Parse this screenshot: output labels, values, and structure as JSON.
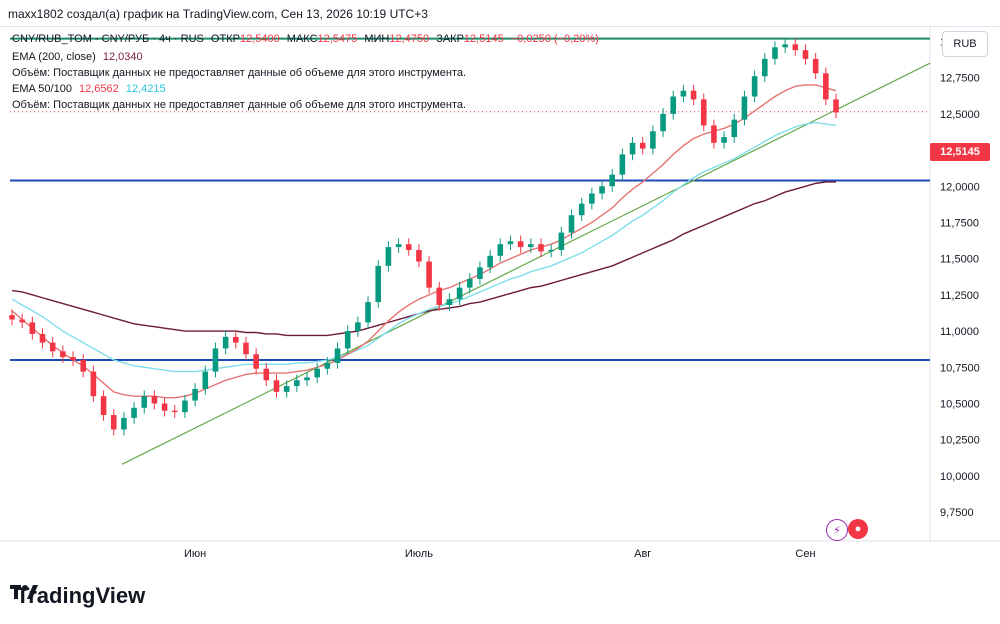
{
  "caption": "maxx1802 создал(а) график на TradingView.com, Сен 13, 2026 10:19 UTC+3",
  "header": {
    "symbol_line": "CNY/RUB_TOM - CNY/РУБ · 4ч · RUS",
    "open_label": "ОТКР",
    "open_value": "12,5400",
    "high_label": "МАКС",
    "high_value": "12,5475",
    "low_label": "МИН",
    "low_value": "12,4750",
    "close_label": "ЗАКР",
    "close_value": "12,5145",
    "change": "−0,0250 (−0,20%)",
    "currency_button": "RUB"
  },
  "indicators": {
    "ema200_label": "EMA (200, close)",
    "ema200_value": "12,0340",
    "volume_notice_1": "Объём: Поставщик данных не предоставляет данные об объеме для этого инструмента.",
    "ema50_100_label": "EMA 50/100",
    "ema50_value": "12,6562",
    "ema100_value": "12,4215",
    "volume_notice_2": "Объём: Поставщик данных не предоставляет данные об объеме для этого инструмента."
  },
  "last_price_tag": "12,5145",
  "footer": {
    "brand": "TradingView",
    "logo_icon": "tradingview-logo-icon"
  },
  "colors": {
    "up": "#089981",
    "down": "#f23645",
    "ema50": "#e57373",
    "ema100": "#80deea",
    "ema200": "#6d1b3b",
    "hline": "#1e4bb8",
    "trend": "#66a84a",
    "top_line": "#1b8a6b"
  },
  "chart_data": {
    "type": "candlestick",
    "y_axis_labels": [
      "13,0000",
      "12,7500",
      "12,5000",
      "12,2500",
      "12,0000",
      "11,7500",
      "11,5000",
      "11,2500",
      "11,0000",
      "10,7500",
      "10,5000",
      "10,2500",
      "10,0000",
      "9,7500"
    ],
    "ylim": [
      9.55,
      13.1
    ],
    "x_axis_labels": [
      "Июн",
      "Июль",
      "Авг",
      "Сен"
    ],
    "horizontal_levels": [
      13.02,
      12.04,
      10.8
    ],
    "last_price": 12.5145,
    "trendline": [
      [
        0.0,
        10.08
      ],
      [
        1.0,
        12.85
      ]
    ],
    "closes": [
      11.08,
      11.06,
      10.98,
      10.92,
      10.86,
      10.82,
      10.8,
      10.72,
      10.55,
      10.42,
      10.32,
      10.4,
      10.47,
      10.55,
      10.5,
      10.45,
      10.44,
      10.52,
      10.6,
      10.72,
      10.88,
      10.96,
      10.92,
      10.84,
      10.74,
      10.66,
      10.58,
      10.62,
      10.66,
      10.68,
      10.74,
      10.78,
      10.88,
      11.0,
      11.06,
      11.2,
      11.45,
      11.58,
      11.6,
      11.56,
      11.48,
      11.3,
      11.18,
      11.22,
      11.3,
      11.36,
      11.44,
      11.52,
      11.6,
      11.62,
      11.58,
      11.6,
      11.55,
      11.56,
      11.68,
      11.8,
      11.88,
      11.95,
      12.0,
      12.08,
      12.22,
      12.3,
      12.26,
      12.38,
      12.5,
      12.62,
      12.66,
      12.6,
      12.42,
      12.3,
      12.34,
      12.46,
      12.62,
      12.76,
      12.88,
      12.96,
      12.98,
      12.94,
      12.88,
      12.78,
      12.6,
      12.51
    ],
    "ema50": [
      11.14,
      11.08,
      11.02,
      10.96,
      10.9,
      10.85,
      10.8,
      10.76,
      10.7,
      10.64,
      10.58,
      10.56,
      10.55,
      10.55,
      10.55,
      10.54,
      10.54,
      10.55,
      10.57,
      10.6,
      10.63,
      10.66,
      10.68,
      10.7,
      10.71,
      10.71,
      10.71,
      10.71,
      10.72,
      10.73,
      10.75,
      10.77,
      10.8,
      10.84,
      10.88,
      10.93,
      11.0,
      11.07,
      11.13,
      11.18,
      11.22,
      11.25,
      11.28,
      11.3,
      11.33,
      11.36,
      11.39,
      11.43,
      11.47,
      11.5,
      11.53,
      11.56,
      11.58,
      11.6,
      11.63,
      11.67,
      11.71,
      11.75,
      11.8,
      11.85,
      11.92,
      11.98,
      12.03,
      12.09,
      12.15,
      12.22,
      12.28,
      12.33,
      12.36,
      12.38,
      12.4,
      12.43,
      12.47,
      12.52,
      12.57,
      12.62,
      12.66,
      12.69,
      12.7,
      12.7,
      12.68,
      12.66
    ],
    "ema100": [
      11.22,
      11.18,
      11.14,
      11.1,
      11.05,
      11.0,
      10.96,
      10.92,
      10.88,
      10.84,
      10.8,
      10.78,
      10.76,
      10.75,
      10.74,
      10.73,
      10.72,
      10.72,
      10.72,
      10.73,
      10.74,
      10.75,
      10.76,
      10.77,
      10.77,
      10.77,
      10.77,
      10.77,
      10.78,
      10.78,
      10.79,
      10.8,
      10.82,
      10.84,
      10.87,
      10.9,
      10.95,
      11.0,
      11.05,
      11.09,
      11.12,
      11.15,
      11.17,
      11.19,
      11.21,
      11.24,
      11.27,
      11.3,
      11.33,
      11.36,
      11.38,
      11.41,
      11.43,
      11.45,
      11.48,
      11.51,
      11.54,
      11.58,
      11.62,
      11.66,
      11.71,
      11.76,
      11.8,
      11.85,
      11.9,
      11.96,
      12.01,
      12.06,
      12.1,
      12.13,
      12.16,
      12.19,
      12.23,
      12.27,
      12.31,
      12.35,
      12.38,
      12.41,
      12.43,
      12.44,
      12.43,
      12.42
    ],
    "ema200": [
      11.28,
      11.27,
      11.25,
      11.23,
      11.21,
      11.19,
      11.17,
      11.15,
      11.13,
      11.11,
      11.09,
      11.07,
      11.05,
      11.04,
      11.03,
      11.02,
      11.01,
      11.0,
      11.0,
      11.0,
      11.0,
      11.0,
      11.0,
      10.99,
      10.99,
      10.98,
      10.98,
      10.97,
      10.97,
      10.97,
      10.97,
      10.97,
      10.98,
      10.99,
      11.0,
      11.02,
      11.04,
      11.06,
      11.08,
      11.1,
      11.12,
      11.14,
      11.15,
      11.16,
      11.17,
      11.19,
      11.2,
      11.22,
      11.24,
      11.26,
      11.28,
      11.3,
      11.31,
      11.33,
      11.35,
      11.37,
      11.39,
      11.41,
      11.43,
      11.45,
      11.48,
      11.51,
      11.54,
      11.57,
      11.6,
      11.63,
      11.67,
      11.7,
      11.73,
      11.76,
      11.79,
      11.82,
      11.85,
      11.88,
      11.9,
      11.93,
      11.96,
      11.98,
      12.0,
      12.02,
      12.03,
      12.03
    ]
  }
}
